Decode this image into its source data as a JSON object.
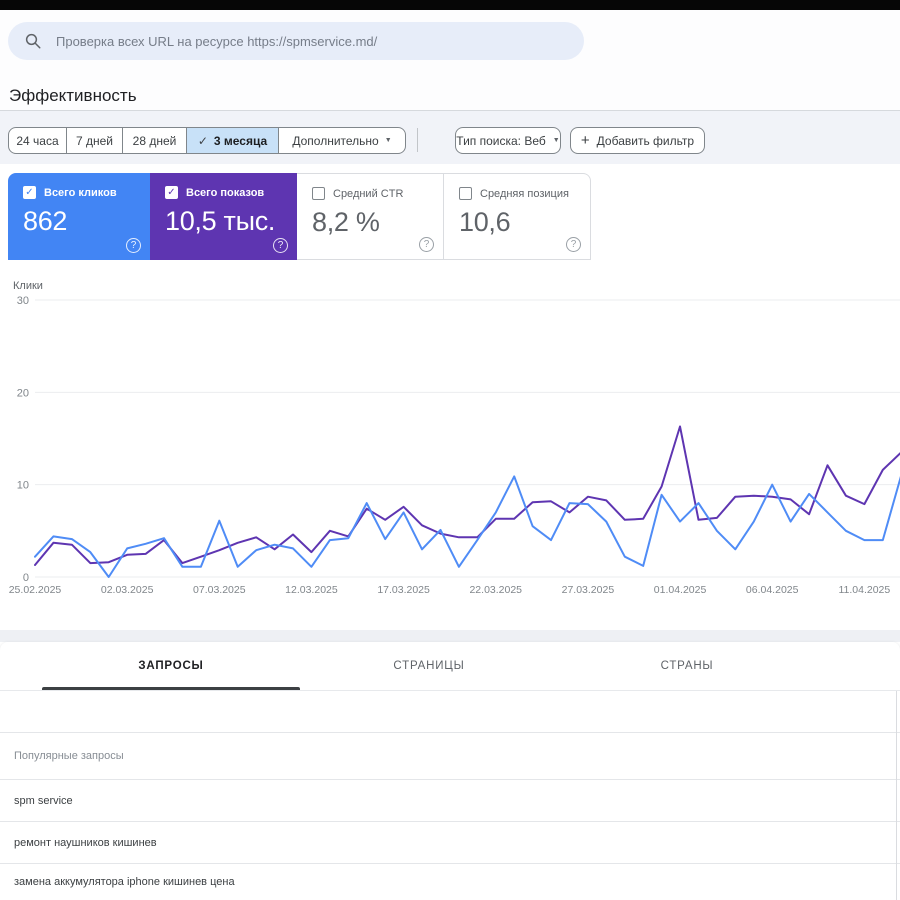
{
  "glyphs": {
    "check": "✓",
    "caret": "▼",
    "plus": "+",
    "help": "?"
  },
  "search": {
    "placeholder": "Проверка всех URL на ресурсе https://spmservice.md/"
  },
  "page": {
    "title": "Эффективность"
  },
  "filters": {
    "date_ranges": [
      {
        "label": "24 часа",
        "selected": false
      },
      {
        "label": "7 дней",
        "selected": false
      },
      {
        "label": "28 дней",
        "selected": false
      },
      {
        "label": "3 месяца",
        "selected": true
      },
      {
        "label": "Дополнительно",
        "selected": false,
        "has_dropdown": true
      }
    ],
    "search_type": {
      "label": "Тип поиска: Веб"
    },
    "add_filter": {
      "label": "Добавить фильтр"
    }
  },
  "metrics": [
    {
      "label": "Всего кликов",
      "value": "862",
      "checked": true,
      "color": "#4285f4"
    },
    {
      "label": "Всего показов",
      "value": "10,5 тыс.",
      "checked": true,
      "color": "#5e35b1"
    },
    {
      "label": "Средний CTR",
      "value": "8,2 %",
      "checked": false,
      "color": "#ffffff"
    },
    {
      "label": "Средняя позиция",
      "value": "10,6",
      "checked": false,
      "color": "#ffffff"
    }
  ],
  "chart_data": {
    "type": "line",
    "title": "",
    "xlabel": "",
    "ylabel": "Клики",
    "ylim": [
      0,
      30
    ],
    "yticks": [
      0,
      10,
      20,
      30
    ],
    "grid": true,
    "legend_position": "none",
    "x_tick_interval": 5,
    "dates": [
      "25.02.2025",
      "26.02.2025",
      "27.02.2025",
      "28.02.2025",
      "01.03.2025",
      "02.03.2025",
      "03.03.2025",
      "04.03.2025",
      "05.03.2025",
      "06.03.2025",
      "07.03.2025",
      "08.03.2025",
      "09.03.2025",
      "10.03.2025",
      "11.03.2025",
      "12.03.2025",
      "13.03.2025",
      "14.03.2025",
      "15.03.2025",
      "16.03.2025",
      "17.03.2025",
      "18.03.2025",
      "19.03.2025",
      "20.03.2025",
      "21.03.2025",
      "22.03.2025",
      "23.03.2025",
      "24.03.2025",
      "25.03.2025",
      "26.03.2025",
      "27.03.2025",
      "28.03.2025",
      "29.03.2025",
      "30.03.2025",
      "31.03.2025",
      "01.04.2025",
      "02.04.2025",
      "03.04.2025",
      "04.04.2025",
      "05.04.2025",
      "06.04.2025",
      "07.04.2025",
      "08.04.2025",
      "09.04.2025",
      "10.04.2025",
      "11.04.2025",
      "12.04.2025",
      "13.04.2025",
      "14.04.2025"
    ],
    "series": [
      {
        "name": "Всего показов",
        "color": "#5e35b1",
        "values": [
          1.3,
          3.7,
          3.5,
          1.5,
          1.6,
          2.4,
          2.5,
          4,
          1.5,
          2.2,
          2.9,
          3.7,
          4.3,
          3,
          4.6,
          2.7,
          5,
          4.4,
          7.4,
          6.2,
          7.6,
          5.6,
          4.7,
          4.3,
          4.3,
          6.3,
          6.3,
          8.1,
          8.2,
          7,
          8.7,
          8.3,
          6.2,
          6.3,
          9.8,
          16.3,
          6.2,
          6.4,
          8.7,
          8.8,
          8.7,
          8.4,
          6.8,
          12.1,
          8.8,
          7.9,
          11.6,
          13.5,
          13.6
        ]
      },
      {
        "name": "Всего кликов",
        "color": "#4f8cf6",
        "values": [
          2.2,
          4.4,
          4.1,
          2.7,
          0,
          3.1,
          3.6,
          4.2,
          1.1,
          1.1,
          6.1,
          1.1,
          2.9,
          3.5,
          3.1,
          1.1,
          4,
          4.2,
          8,
          4.1,
          7,
          3,
          5.1,
          1.1,
          4,
          7,
          10.9,
          5.5,
          4,
          8,
          7.9,
          6,
          2.2,
          1.2,
          8.9,
          6,
          8,
          5,
          3,
          6,
          10,
          6,
          9,
          7,
          5,
          4,
          4,
          11,
          10.2
        ]
      }
    ]
  },
  "tabs": [
    {
      "label": "ЗАПРОСЫ",
      "active": true
    },
    {
      "label": "СТРАНИЦЫ",
      "active": false
    },
    {
      "label": "СТРАНЫ",
      "active": false
    }
  ],
  "table": {
    "group_header": "Популярные запросы",
    "rows": [
      "spm service",
      "ремонт наушников кишинев",
      "замена аккумулятора iphone кишинев цена"
    ]
  }
}
